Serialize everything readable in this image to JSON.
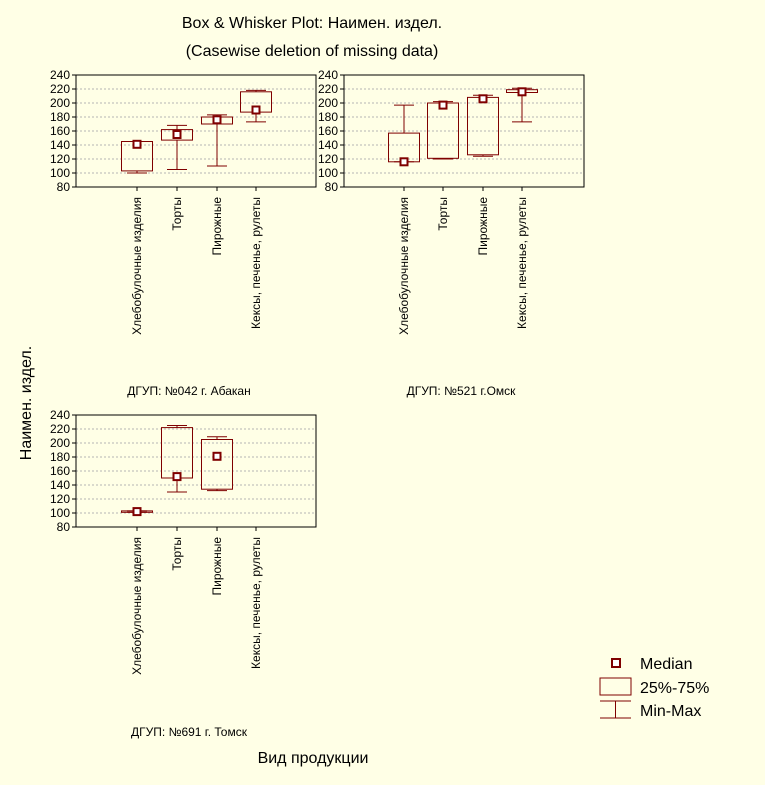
{
  "title": "Box & Whisker Plot: Наимен. издел.",
  "subtitle": "(Casewise deletion of missing data)",
  "ylabel": "Наимен. издел.",
  "xlabel": "Вид продукции",
  "legend": {
    "median": "Median",
    "box": "25%-75%",
    "whisker": "Min-Max"
  },
  "colors": {
    "background": "#ffffe6",
    "mark": "#7f0000",
    "grid": "#b4b4b4",
    "axis": "#000000"
  },
  "chart_data": [
    {
      "type": "boxplot",
      "panel_label": "ДГУП: №042 г. Абакан",
      "categories": [
        "Хлебобулочные изделия",
        "Торты",
        "Пирожные",
        "Кексы, печенье, рулеты"
      ],
      "ylim": [
        80,
        240
      ],
      "yticks": [
        "240",
        "220",
        "200",
        "180",
        "160",
        "140",
        "120",
        "100",
        "80"
      ],
      "boxes": [
        {
          "min": 100,
          "q1": 103,
          "median": 141,
          "q3": 145,
          "max": 145
        },
        {
          "min": 105,
          "q1": 147,
          "median": 155,
          "q3": 162,
          "max": 168
        },
        {
          "min": 110,
          "q1": 170,
          "median": 176,
          "q3": 180,
          "max": 183
        },
        {
          "min": 173,
          "q1": 187,
          "median": 190,
          "q3": 216,
          "max": 218
        }
      ]
    },
    {
      "type": "boxplot",
      "panel_label": "ДГУП: №521 г.Омск",
      "categories": [
        "Хлебобулочные изделия",
        "Торты",
        "Пирожные",
        "Кексы, печенье, рулеты"
      ],
      "ylim": [
        80,
        240
      ],
      "yticks": [
        "240",
        "220",
        "200",
        "180",
        "160",
        "140",
        "120",
        "100",
        "80"
      ],
      "boxes": [
        {
          "min": 116,
          "q1": 116,
          "median": 116,
          "q3": 157,
          "max": 197
        },
        {
          "min": 120,
          "q1": 121,
          "median": 197,
          "q3": 200,
          "max": 202
        },
        {
          "min": 124,
          "q1": 126,
          "median": 206,
          "q3": 208,
          "max": 211
        },
        {
          "min": 173,
          "q1": 215,
          "median": 216,
          "q3": 219,
          "max": 221
        }
      ]
    },
    {
      "type": "boxplot",
      "panel_label": "ДГУП: №691 г. Томск",
      "categories": [
        "Хлебобулочные изделия",
        "Торты",
        "Пирожные",
        "Кексы, печенье, рулеты"
      ],
      "ylim": [
        80,
        240
      ],
      "yticks": [
        "240",
        "220",
        "200",
        "180",
        "160",
        "140",
        "120",
        "100",
        "80"
      ],
      "boxes": [
        {
          "min": 101,
          "q1": 101,
          "median": 102,
          "q3": 103,
          "max": 103
        },
        {
          "min": 130,
          "q1": 150,
          "median": 152,
          "q3": 222,
          "max": 225
        },
        {
          "min": 132,
          "q1": 134,
          "median": 181,
          "q3": 205,
          "max": 209
        },
        null
      ]
    }
  ]
}
